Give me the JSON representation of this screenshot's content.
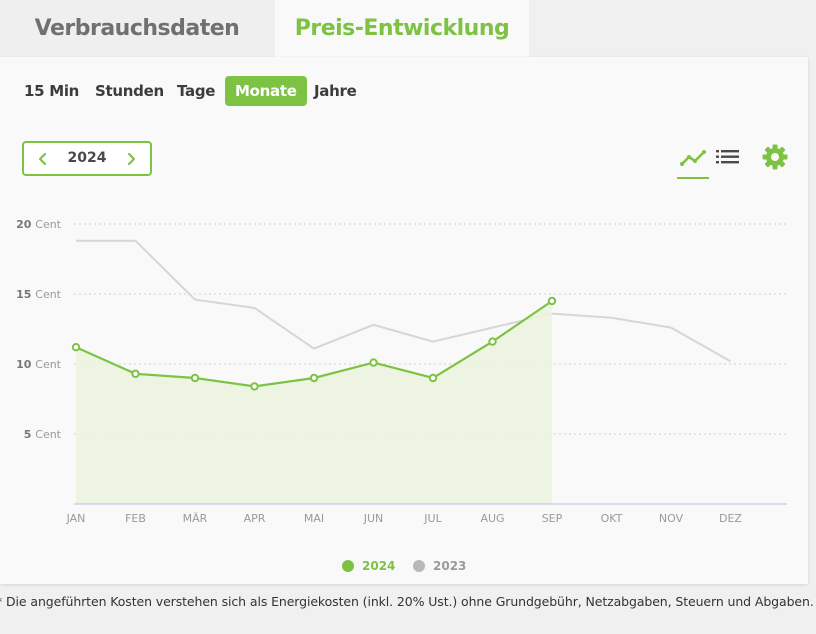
{
  "tabs": [
    {
      "label": "Verbrauchsdaten",
      "active": false
    },
    {
      "label": "Preis-Entwicklung",
      "active": true
    }
  ],
  "granularity": {
    "options": [
      "15 Min",
      "Stunden",
      "Tage",
      "Monate",
      "Jahre"
    ],
    "selected": "Monate"
  },
  "year_selector": {
    "value": "2024"
  },
  "view_toggle": {
    "selected": "chart-view",
    "icons": [
      "line-chart-icon",
      "list-icon",
      "gear-icon"
    ]
  },
  "colors": {
    "accent": "#7dc243",
    "series_2023": "#d6d6d6",
    "area_fill": "#ebf4df",
    "axis": "#c7c7e6",
    "grid": "#cfcfcf",
    "text": "#3c3c3c",
    "tick": "#9a9a9a"
  },
  "chart_data": {
    "type": "line",
    "x": [
      "JAN",
      "FEB",
      "MÄR",
      "APR",
      "MAI",
      "JUN",
      "JUL",
      "AUG",
      "SEP",
      "OKT",
      "NOV",
      "DEZ"
    ],
    "y_ticks": [
      {
        "value": 20,
        "label": "20",
        "unit": "Cent"
      },
      {
        "value": 15,
        "label": "15",
        "unit": "Cent"
      },
      {
        "value": 10,
        "label": "10",
        "unit": "Cent"
      },
      {
        "value": 5,
        "label": "5",
        "unit": "Cent"
      }
    ],
    "ylim": [
      0,
      20
    ],
    "grid": true,
    "series": [
      {
        "name": "2024",
        "color": "#7dc243",
        "area": true,
        "markers": true,
        "values": [
          11.2,
          9.3,
          9.0,
          8.4,
          9.0,
          10.1,
          9.0,
          11.6,
          14.5,
          null,
          null,
          null
        ]
      },
      {
        "name": "2023",
        "color": "#d6d6d6",
        "area": false,
        "markers": false,
        "values": [
          18.8,
          18.8,
          14.6,
          14.0,
          11.1,
          12.8,
          11.6,
          12.6,
          13.6,
          13.3,
          12.6,
          10.2
        ]
      }
    ],
    "legend_position": "bottom-center"
  },
  "footnote": "* Die angeführten Kosten verstehen sich als Energiekosten (inkl. 20% Ust.) ohne Grundgebühr, Netzabgaben, Steuern und Abgaben."
}
